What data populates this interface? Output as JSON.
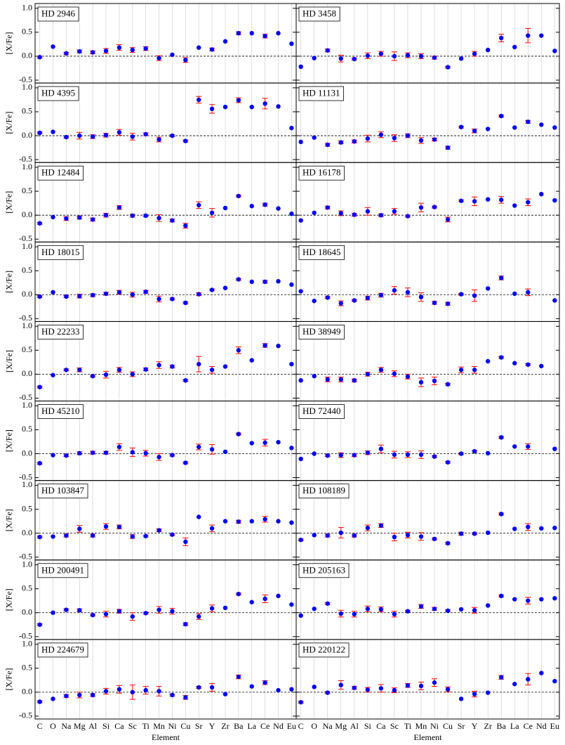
{
  "chart_data": [
    {
      "type": "errorbar",
      "title": "HD 2946",
      "ylabel": "[X/Fe]",
      "color": "#0000ff",
      "error_color": "#ff0000",
      "ylim": [
        -0.56,
        1.1
      ],
      "yticks": [
        -0.5,
        {
          "value": 0,
          "label": "0.0"
        },
        0.5,
        {
          "value": 1,
          "label": "1.0"
        }
      ],
      "hline": 0,
      "grid": true,
      "values": [
        -0.02,
        0.2,
        0.06,
        0.1,
        0.08,
        0.11,
        0.18,
        0.13,
        0.16,
        -0.04,
        0.03,
        -0.08,
        0.18,
        0.14,
        0.31,
        0.48,
        0.48,
        0.42,
        0.48,
        0.26
      ],
      "errors": [
        0.02,
        null,
        0.02,
        0.03,
        0.03,
        0.05,
        0.06,
        0.05,
        0.04,
        0.05,
        null,
        0.05,
        null,
        0.03,
        null,
        0.03,
        null,
        0.04,
        null,
        null
      ]
    },
    {
      "type": "errorbar",
      "title": "HD 3458",
      "color": "#0000ff",
      "error_color": "#ff0000",
      "ylim": [
        -0.56,
        1.1
      ],
      "yticks": [
        -0.5,
        0,
        0.5,
        1
      ],
      "hline": 0,
      "grid": true,
      "values": [
        -0.22,
        -0.04,
        0.12,
        -0.05,
        -0.06,
        0.01,
        0.05,
        0.0,
        0.02,
        0.0,
        -0.03,
        -0.23,
        -0.05,
        0.05,
        0.13,
        0.38,
        0.19,
        0.43,
        0.43,
        0.11
      ],
      "errors": [
        null,
        null,
        0.03,
        0.07,
        0.02,
        0.06,
        0.05,
        0.09,
        0.05,
        0.05,
        0.03,
        0.02,
        null,
        0.05,
        null,
        0.08,
        null,
        0.15,
        null,
        null
      ]
    },
    {
      "type": "errorbar",
      "title": "HD 4395",
      "ylabel": "[X/Fe]",
      "color": "#0000ff",
      "error_color": "#ff0000",
      "ylim": [
        -0.56,
        1.1
      ],
      "yticks": [
        -0.5,
        {
          "value": 0,
          "label": "0.0"
        },
        0.5,
        {
          "value": 1,
          "label": "1.0"
        }
      ],
      "hline": 0,
      "grid": true,
      "values": [
        0.06,
        0.08,
        -0.03,
        0.0,
        -0.02,
        0.01,
        0.07,
        -0.02,
        0.03,
        -0.08,
        0.0,
        -0.11,
        0.75,
        0.56,
        0.6,
        0.74,
        0.6,
        0.67,
        0.61,
        0.16
      ],
      "errors": [
        0.02,
        null,
        0.02,
        0.07,
        0.04,
        0.04,
        0.06,
        0.07,
        0.03,
        0.05,
        0.02,
        0.02,
        0.07,
        0.09,
        null,
        0.05,
        null,
        0.11,
        null,
        null
      ]
    },
    {
      "type": "errorbar",
      "title": "HD 11131",
      "color": "#0000ff",
      "error_color": "#ff0000",
      "ylim": [
        -0.56,
        1.1
      ],
      "yticks": [
        -0.5,
        0,
        0.5,
        1
      ],
      "hline": 0,
      "grid": true,
      "values": [
        -0.13,
        -0.04,
        -0.19,
        -0.14,
        -0.12,
        -0.06,
        0.02,
        -0.05,
        0.0,
        -0.1,
        -0.08,
        -0.25,
        0.18,
        0.1,
        0.14,
        0.41,
        0.17,
        0.29,
        0.23,
        0.17
      ],
      "errors": [
        null,
        null,
        0.03,
        0.03,
        0.03,
        0.07,
        0.06,
        0.07,
        0.04,
        0.06,
        0.03,
        0.03,
        0.02,
        0.04,
        null,
        0.02,
        null,
        0.03,
        null,
        null
      ]
    },
    {
      "type": "errorbar",
      "title": "HD 12484",
      "ylabel": "[X/Fe]",
      "color": "#0000ff",
      "error_color": "#ff0000",
      "ylim": [
        -0.56,
        1.1
      ],
      "yticks": [
        -0.5,
        {
          "value": 0,
          "label": "0.0"
        },
        0.5,
        {
          "value": 1,
          "label": "1.0"
        }
      ],
      "hline": 0,
      "grid": true,
      "values": [
        -0.17,
        -0.04,
        -0.07,
        -0.05,
        -0.09,
        0.0,
        0.16,
        -0.01,
        -0.01,
        -0.06,
        -0.11,
        -0.22,
        0.21,
        0.05,
        0.15,
        0.4,
        0.19,
        0.22,
        0.14,
        0.03
      ],
      "errors": [
        0.02,
        null,
        0.04,
        0.03,
        0.03,
        0.04,
        0.04,
        0.03,
        0.02,
        0.07,
        0.03,
        0.05,
        0.07,
        0.09,
        null,
        0.02,
        null,
        0.03,
        null,
        null
      ]
    },
    {
      "type": "errorbar",
      "title": "HD 16178",
      "color": "#0000ff",
      "error_color": "#ff0000",
      "ylim": [
        -0.56,
        1.1
      ],
      "yticks": [
        -0.5,
        0,
        0.5,
        1
      ],
      "hline": 0,
      "grid": true,
      "values": [
        -0.11,
        0.05,
        0.16,
        0.04,
        0.01,
        0.08,
        0.0,
        0.08,
        -0.02,
        0.16,
        0.17,
        -0.09,
        0.3,
        0.29,
        0.33,
        0.32,
        0.2,
        0.27,
        0.44,
        0.31
      ],
      "errors": [
        null,
        null,
        0.03,
        0.05,
        0.03,
        0.08,
        0.03,
        0.06,
        0.02,
        0.09,
        0.02,
        0.05,
        0.02,
        0.09,
        null,
        0.07,
        null,
        0.07,
        null,
        null
      ]
    },
    {
      "type": "errorbar",
      "title": "HD 18015",
      "ylabel": "[X/Fe]",
      "color": "#0000ff",
      "error_color": "#ff0000",
      "ylim": [
        -0.56,
        1.1
      ],
      "yticks": [
        -0.5,
        {
          "value": 0,
          "label": "0.0"
        },
        0.5,
        {
          "value": 1,
          "label": "1.0"
        }
      ],
      "hline": 0,
      "grid": true,
      "values": [
        -0.04,
        0.05,
        -0.04,
        -0.03,
        -0.01,
        0.02,
        0.05,
        0.0,
        0.06,
        -0.09,
        -0.09,
        -0.17,
        0.01,
        0.1,
        0.14,
        0.32,
        0.27,
        0.27,
        0.28,
        0.21
      ],
      "errors": [
        0.02,
        null,
        0.02,
        0.04,
        0.03,
        0.03,
        0.04,
        0.05,
        0.03,
        0.06,
        0.02,
        0.02,
        0.03,
        0.02,
        null,
        0.02,
        null,
        0.03,
        null,
        null
      ]
    },
    {
      "type": "errorbar",
      "title": "HD 18645",
      "color": "#0000ff",
      "error_color": "#ff0000",
      "ylim": [
        -0.56,
        1.1
      ],
      "yticks": [
        -0.5,
        0,
        0.5,
        1
      ],
      "hline": 0,
      "grid": true,
      "values": [
        0.07,
        -0.13,
        -0.06,
        -0.18,
        -0.12,
        -0.07,
        -0.01,
        0.09,
        0.05,
        -0.05,
        -0.17,
        -0.19,
        0.01,
        -0.02,
        0.13,
        0.35,
        0.02,
        0.05,
        null,
        -0.12
      ],
      "errors": [
        null,
        null,
        0.02,
        0.05,
        0.02,
        0.04,
        0.04,
        0.08,
        0.09,
        0.09,
        0.03,
        0.03,
        0.02,
        0.12,
        null,
        0.04,
        null,
        0.07,
        null,
        null
      ]
    },
    {
      "type": "errorbar",
      "title": "HD 22233",
      "ylabel": "[X/Fe]",
      "color": "#0000ff",
      "error_color": "#ff0000",
      "ylim": [
        -0.56,
        1.1
      ],
      "yticks": [
        -0.5,
        {
          "value": 0,
          "label": "0.0"
        },
        0.5,
        {
          "value": 1,
          "label": "1.0"
        }
      ],
      "hline": 0,
      "grid": true,
      "values": [
        -0.27,
        -0.02,
        0.09,
        0.09,
        -0.04,
        -0.01,
        0.09,
        0.0,
        0.1,
        0.19,
        0.16,
        -0.13,
        0.21,
        0.09,
        0.16,
        0.5,
        0.29,
        0.6,
        0.59,
        0.21
      ],
      "errors": [
        0.02,
        null,
        0.02,
        0.04,
        0.02,
        0.07,
        0.05,
        0.05,
        0.03,
        0.07,
        0.03,
        0.02,
        0.16,
        0.07,
        null,
        0.07,
        null,
        0.04,
        null,
        null
      ]
    },
    {
      "type": "errorbar",
      "title": "HD 38949",
      "color": "#0000ff",
      "error_color": "#ff0000",
      "ylim": [
        -0.56,
        1.1
      ],
      "yticks": [
        -0.5,
        0,
        0.5,
        1
      ],
      "hline": 0,
      "grid": true,
      "values": [
        -0.13,
        -0.04,
        -0.11,
        -0.11,
        -0.13,
        0.0,
        0.09,
        0.01,
        -0.05,
        -0.17,
        -0.14,
        -0.21,
        0.09,
        0.09,
        0.27,
        0.35,
        0.23,
        0.2,
        0.17,
        null
      ],
      "errors": [
        null,
        null,
        0.05,
        0.05,
        0.03,
        0.04,
        0.05,
        0.06,
        0.05,
        0.09,
        0.08,
        0.02,
        0.06,
        0.07,
        null,
        0.02,
        null,
        0.02,
        null,
        null
      ]
    },
    {
      "type": "errorbar",
      "title": "HD 45210",
      "ylabel": "[X/Fe]",
      "color": "#0000ff",
      "error_color": "#ff0000",
      "ylim": [
        -0.56,
        1.1
      ],
      "yticks": [
        -0.5,
        {
          "value": 0,
          "label": "0.0"
        },
        0.5,
        {
          "value": 1,
          "label": "1.0"
        }
      ],
      "hline": 0,
      "grid": true,
      "values": [
        -0.2,
        -0.03,
        -0.04,
        0.01,
        0.02,
        0.02,
        0.14,
        0.03,
        0.01,
        -0.07,
        -0.03,
        -0.19,
        0.14,
        0.09,
        0.04,
        0.41,
        0.22,
        0.23,
        0.24,
        0.12
      ],
      "errors": [
        0.02,
        null,
        0.02,
        0.03,
        0.03,
        0.03,
        0.07,
        0.09,
        0.06,
        0.07,
        0.02,
        0.02,
        0.06,
        0.1,
        null,
        0.02,
        null,
        0.07,
        null,
        null
      ]
    },
    {
      "type": "errorbar",
      "title": "HD 72440",
      "color": "#0000ff",
      "error_color": "#ff0000",
      "ylim": [
        -0.56,
        1.1
      ],
      "yticks": [
        -0.5,
        0,
        0.5,
        1
      ],
      "hline": 0,
      "grid": true,
      "values": [
        -0.11,
        0.0,
        -0.04,
        -0.03,
        -0.03,
        0.02,
        0.1,
        -0.02,
        -0.02,
        -0.02,
        -0.06,
        -0.18,
        0.0,
        0.05,
        0.01,
        0.34,
        0.15,
        0.15,
        null,
        0.1
      ],
      "errors": [
        null,
        null,
        0.02,
        0.05,
        0.03,
        0.04,
        0.08,
        0.07,
        0.06,
        0.08,
        0.02,
        0.02,
        0.02,
        0.02,
        null,
        0.02,
        null,
        0.06,
        null,
        null
      ]
    },
    {
      "type": "errorbar",
      "title": "HD 103847",
      "ylabel": "[X/Fe]",
      "color": "#0000ff",
      "error_color": "#ff0000",
      "ylim": [
        -0.56,
        1.1
      ],
      "yticks": [
        -0.5,
        {
          "value": 0,
          "label": "0.0"
        },
        0.5,
        {
          "value": 1,
          "label": "1.0"
        }
      ],
      "hline": 0,
      "grid": true,
      "values": [
        -0.08,
        -0.07,
        -0.05,
        0.09,
        -0.05,
        0.14,
        0.13,
        -0.07,
        -0.06,
        0.06,
        -0.03,
        -0.18,
        0.34,
        0.1,
        0.25,
        0.24,
        0.25,
        0.29,
        0.25,
        0.22
      ],
      "errors": [
        0.02,
        null,
        0.03,
        0.07,
        0.03,
        0.06,
        0.04,
        0.04,
        0.02,
        0.03,
        0.02,
        0.08,
        null,
        0.07,
        null,
        0.03,
        null,
        0.06,
        null,
        null
      ]
    },
    {
      "type": "errorbar",
      "title": "HD 108189",
      "color": "#0000ff",
      "error_color": "#ff0000",
      "ylim": [
        -0.56,
        1.1
      ],
      "yticks": [
        -0.5,
        0,
        0.5,
        1
      ],
      "hline": 0,
      "grid": true,
      "values": [
        -0.14,
        -0.04,
        -0.05,
        0.01,
        -0.05,
        0.11,
        0.16,
        -0.08,
        -0.04,
        -0.07,
        -0.12,
        -0.21,
        -0.01,
        -0.01,
        0.01,
        0.4,
        0.09,
        0.13,
        0.1,
        0.11
      ],
      "errors": [
        0.02,
        null,
        0.03,
        0.11,
        0.03,
        0.06,
        0.04,
        0.08,
        0.06,
        0.08,
        0.02,
        0.02,
        0.03,
        0.02,
        null,
        0.02,
        null,
        0.07,
        null,
        null
      ]
    },
    {
      "type": "errorbar",
      "title": "HD 200491",
      "ylabel": "[X/Fe]",
      "color": "#0000ff",
      "error_color": "#ff0000",
      "ylim": [
        -0.56,
        1.1
      ],
      "yticks": [
        -0.5,
        {
          "value": 0,
          "label": "0.0"
        },
        0.5,
        {
          "value": 1,
          "label": "1.0"
        }
      ],
      "hline": 0,
      "grid": true,
      "values": [
        -0.25,
        0.0,
        0.06,
        0.05,
        -0.05,
        -0.03,
        0.03,
        -0.08,
        -0.01,
        0.06,
        0.03,
        -0.24,
        -0.08,
        0.09,
        0.1,
        0.39,
        0.22,
        0.29,
        0.35,
        0.17
      ],
      "errors": [
        0.02,
        null,
        0.02,
        0.03,
        0.02,
        0.06,
        0.04,
        0.08,
        0.02,
        0.07,
        0.06,
        0.03,
        0.06,
        0.07,
        null,
        0.02,
        null,
        0.08,
        null,
        null
      ]
    },
    {
      "type": "errorbar",
      "title": "HD 205163",
      "color": "#0000ff",
      "error_color": "#ff0000",
      "ylim": [
        -0.56,
        1.1
      ],
      "yticks": [
        -0.5,
        0,
        0.5,
        1
      ],
      "hline": 0,
      "grid": true,
      "values": [
        -0.06,
        0.08,
        0.19,
        -0.02,
        -0.03,
        0.08,
        0.07,
        -0.03,
        0.03,
        0.13,
        0.08,
        0.04,
        0.07,
        0.05,
        0.15,
        0.35,
        0.28,
        0.25,
        0.28,
        0.3
      ],
      "errors": [
        null,
        null,
        0.02,
        0.07,
        0.06,
        0.06,
        0.05,
        0.06,
        0.02,
        0.04,
        0.03,
        0.02,
        null,
        0.06,
        null,
        0.02,
        null,
        0.07,
        null,
        null
      ]
    },
    {
      "type": "errorbar",
      "title": "HD 224679",
      "ylabel": "[X/Fe]",
      "xlabel": "Element",
      "color": "#0000ff",
      "error_color": "#ff0000",
      "ylim": [
        -0.56,
        1.1
      ],
      "yticks": [
        -0.5,
        {
          "value": 0,
          "label": "0.0"
        },
        0.5,
        {
          "value": 1,
          "label": "1.0"
        }
      ],
      "hline": 0,
      "grid": true,
      "categories": [
        "C",
        "O",
        "Na",
        "Mg",
        "Al",
        "Si",
        "Ca",
        "Sc",
        "Ti",
        "Mn",
        "Ni",
        "Cu",
        "Sr",
        "Y",
        "Zr",
        "Ba",
        "La",
        "Ce",
        "Nd",
        "Eu"
      ],
      "values": [
        -0.2,
        -0.14,
        -0.08,
        -0.06,
        -0.06,
        0.02,
        0.06,
        0.0,
        0.04,
        0.02,
        -0.06,
        -0.11,
        0.1,
        0.1,
        -0.04,
        0.32,
        0.12,
        0.2,
        0.04,
        0.06
      ],
      "errors": [
        0.02,
        null,
        0.03,
        0.06,
        0.03,
        0.06,
        0.08,
        0.15,
        0.08,
        0.1,
        0.02,
        0.04,
        0.02,
        0.08,
        null,
        0.04,
        null,
        0.04,
        null,
        null
      ]
    },
    {
      "type": "errorbar",
      "title": "HD 220122",
      "xlabel": "Element",
      "color": "#0000ff",
      "error_color": "#ff0000",
      "ylim": [
        -0.56,
        1.1
      ],
      "yticks": [
        -0.5,
        0,
        0.5,
        1
      ],
      "hline": 0,
      "grid": true,
      "categories": [
        "C",
        "O",
        "Na",
        "Mg",
        "Al",
        "Si",
        "Ca",
        "Sc",
        "Ti",
        "Mn",
        "Ni",
        "Cu",
        "Sr",
        "Y",
        "Zr",
        "Ba",
        "La",
        "Ce",
        "Nd",
        "Eu"
      ],
      "values": [
        -0.21,
        0.11,
        -0.01,
        0.15,
        0.09,
        0.05,
        0.08,
        0.04,
        0.14,
        0.13,
        0.2,
        0.06,
        -0.14,
        -0.04,
        -0.01,
        0.31,
        0.17,
        0.27,
        0.4,
        0.23
      ],
      "errors": [
        0.02,
        null,
        0.02,
        0.09,
        0.03,
        0.05,
        0.08,
        0.05,
        0.04,
        0.08,
        0.08,
        0.05,
        null,
        0.06,
        null,
        0.04,
        null,
        0.12,
        null,
        null
      ]
    }
  ]
}
